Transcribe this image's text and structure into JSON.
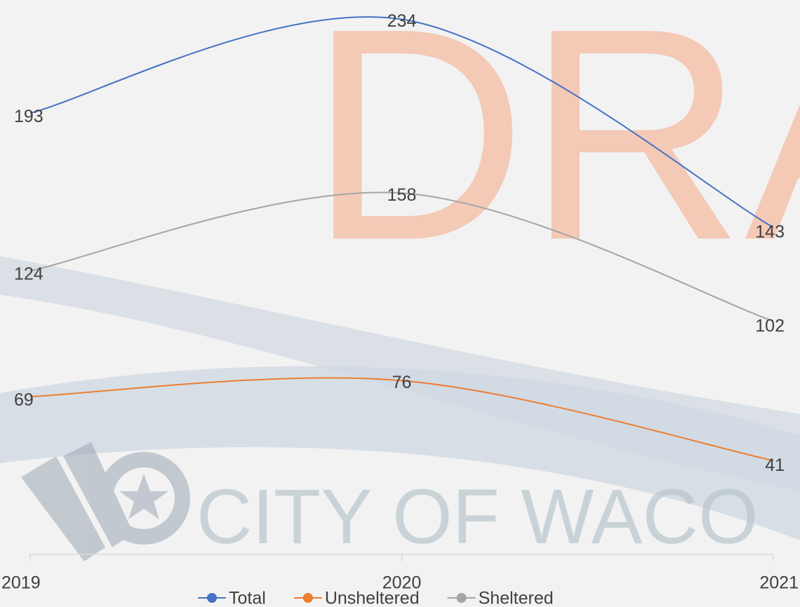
{
  "watermark": "DRAFT",
  "brand": "CITY OF WACO",
  "chart_data": {
    "type": "line",
    "categories": [
      "2019",
      "2020",
      "2021"
    ],
    "series": [
      {
        "name": "Total",
        "color": "#4472c4",
        "values": [
          193,
          234,
          143
        ]
      },
      {
        "name": "Unsheltered",
        "color": "#ed7d31",
        "values": [
          69,
          76,
          41
        ]
      },
      {
        "name": "Sheltered",
        "color": "#a5a5a5",
        "values": [
          124,
          158,
          102
        ]
      }
    ],
    "ylim": [
      0,
      240
    ],
    "smooth": true,
    "data_labels": true,
    "legend": "bottom"
  }
}
